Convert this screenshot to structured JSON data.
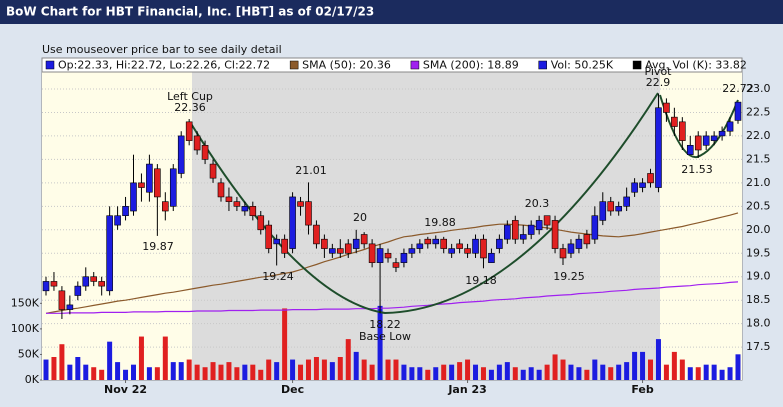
{
  "chart_data": {
    "type": "candlestick",
    "title": "BoW Chart for HBT Financial, Inc. [HBT] as of 02/17/23",
    "subtitle": "Use mouseover price bar to see daily detail",
    "legend": [
      {
        "name": "Op:22.33, Hi:22.72, Lo:22.26, Cl:22.72",
        "color": "#1c1ce0"
      },
      {
        "name": "SMA (50): 20.36",
        "color": "#8b5a2b"
      },
      {
        "name": "SMA (200): 18.89",
        "color": "#a020f0"
      },
      {
        "name": "Vol: 50.25K",
        "color": "#1c1ce0"
      },
      {
        "name": "Avg. Vol (K): 33.82",
        "color": "#000000"
      }
    ],
    "up_color": "#1c1ce0",
    "down_color": "#e02020",
    "categories": [
      null,
      null,
      null,
      null,
      null,
      null,
      null,
      null,
      null,
      null,
      "Nov 22",
      null,
      null,
      null,
      null,
      null,
      null,
      null,
      null,
      null,
      null,
      null,
      null,
      null,
      null,
      null,
      null,
      null,
      null,
      null,
      null,
      "Dec",
      null,
      null,
      null,
      null,
      null,
      null,
      null,
      null,
      null,
      null,
      null,
      null,
      null,
      null,
      null,
      null,
      null,
      null,
      null,
      null,
      null,
      "Jan 23",
      null,
      null,
      null,
      null,
      null,
      null,
      null,
      null,
      null,
      null,
      null,
      null,
      null,
      null,
      null,
      null,
      null,
      null,
      null,
      null,
      null,
      "Feb",
      null,
      null,
      null,
      null,
      null,
      null,
      null,
      null,
      null,
      null,
      null,
      null
    ],
    "open": [
      18.7,
      18.9,
      18.7,
      18.3,
      18.6,
      18.8,
      19.0,
      18.9,
      18.7,
      20.1,
      20.3,
      20.4,
      21.0,
      20.8,
      21.3,
      20.6,
      20.5,
      21.2,
      22.3,
      22.0,
      21.8,
      21.4,
      21.0,
      20.7,
      20.6,
      20.4,
      20.5,
      20.3,
      20.1,
      19.7,
      19.8,
      19.6,
      20.6,
      20.6,
      20.1,
      19.8,
      19.5,
      19.6,
      19.7,
      19.6,
      19.9,
      19.7,
      19.3,
      19.5,
      19.3,
      19.3,
      19.5,
      19.6,
      19.8,
      19.7,
      19.8,
      19.5,
      19.7,
      19.6,
      19.5,
      19.8,
      19.3,
      19.6,
      19.8,
      20.2,
      19.8,
      19.9,
      20.0,
      20.3,
      20.2,
      19.6,
      19.5,
      19.6,
      19.9,
      19.8,
      20.2,
      20.6,
      20.4,
      20.5,
      20.8,
      20.9,
      21.2,
      20.9,
      22.7,
      22.4,
      22.3,
      21.6,
      22.0,
      21.8,
      21.9,
      22.0,
      22.1,
      22.33
    ],
    "high": [
      19.0,
      19.1,
      18.8,
      18.6,
      18.9,
      19.2,
      19.1,
      19.0,
      20.5,
      20.5,
      20.7,
      21.6,
      21.2,
      21.6,
      21.4,
      20.8,
      21.4,
      22.1,
      22.36,
      22.1,
      21.9,
      21.5,
      21.1,
      20.9,
      20.7,
      20.6,
      20.6,
      20.4,
      20.2,
      19.9,
      19.9,
      20.8,
      20.7,
      21.01,
      20.2,
      19.9,
      19.7,
      19.8,
      19.8,
      20.0,
      19.95,
      19.8,
      19.7,
      19.6,
      19.4,
      19.6,
      19.7,
      19.8,
      19.85,
      19.88,
      19.85,
      19.7,
      19.8,
      19.7,
      19.9,
      19.9,
      19.6,
      19.9,
      20.2,
      20.3,
      20.1,
      20.2,
      20.3,
      20.25,
      20.3,
      19.7,
      19.8,
      19.9,
      20.0,
      20.5,
      20.8,
      20.7,
      20.6,
      20.9,
      21.1,
      21.1,
      21.3,
      22.9,
      22.8,
      22.6,
      22.4,
      22.0,
      22.1,
      22.1,
      22.1,
      22.2,
      22.4,
      22.72
    ],
    "low": [
      18.6,
      18.7,
      18.1,
      18.2,
      18.5,
      18.7,
      18.8,
      18.6,
      18.6,
      20.0,
      20.2,
      20.3,
      20.6,
      20.6,
      19.87,
      20.2,
      20.4,
      21.1,
      21.8,
      21.6,
      21.4,
      21.0,
      20.6,
      20.4,
      20.4,
      20.3,
      20.2,
      19.9,
      19.5,
      19.24,
      19.4,
      19.5,
      20.3,
      19.9,
      19.6,
      19.4,
      19.4,
      19.4,
      19.4,
      19.5,
      19.6,
      19.2,
      18.22,
      19.3,
      19.1,
      19.2,
      19.4,
      19.5,
      19.6,
      19.6,
      19.5,
      19.4,
      19.5,
      19.4,
      19.4,
      19.18,
      19.3,
      19.5,
      19.7,
      19.7,
      19.7,
      19.8,
      19.9,
      20.0,
      19.5,
      19.25,
      19.4,
      19.5,
      19.6,
      19.7,
      20.1,
      20.3,
      20.3,
      20.4,
      20.7,
      20.8,
      20.9,
      20.8,
      22.3,
      22.0,
      21.7,
      21.6,
      21.53,
      21.7,
      21.8,
      21.9,
      22.0,
      22.26
    ],
    "close": [
      18.9,
      18.8,
      18.3,
      18.4,
      18.8,
      19.0,
      18.9,
      18.8,
      20.3,
      20.3,
      20.5,
      21.0,
      20.9,
      21.4,
      20.7,
      20.4,
      21.3,
      22.0,
      21.9,
      21.7,
      21.5,
      21.1,
      20.7,
      20.6,
      20.5,
      20.5,
      20.3,
      20.0,
      19.6,
      19.8,
      19.5,
      20.7,
      20.5,
      20.1,
      19.7,
      19.6,
      19.6,
      19.5,
      19.5,
      19.8,
      19.7,
      19.3,
      19.6,
      19.4,
      19.2,
      19.5,
      19.6,
      19.7,
      19.7,
      19.8,
      19.6,
      19.6,
      19.6,
      19.5,
      19.8,
      19.4,
      19.5,
      19.8,
      20.1,
      19.8,
      19.9,
      20.1,
      20.2,
      20.1,
      19.6,
      19.4,
      19.7,
      19.8,
      19.7,
      20.3,
      20.6,
      20.4,
      20.5,
      20.7,
      21.0,
      21.0,
      21.0,
      22.6,
      22.5,
      22.2,
      21.9,
      21.8,
      21.7,
      22.0,
      22.0,
      22.1,
      22.3,
      22.72
    ],
    "sma50": [
      18.22,
      18.25,
      18.28,
      18.31,
      18.33,
      18.36,
      18.39,
      18.42,
      18.45,
      18.48,
      18.5,
      18.53,
      18.56,
      18.59,
      18.62,
      18.65,
      18.67,
      18.7,
      18.73,
      18.76,
      18.79,
      18.82,
      18.84,
      18.87,
      18.9,
      18.93,
      18.96,
      18.99,
      19.01,
      19.04,
      19.07,
      19.1,
      19.15,
      19.21,
      19.26,
      19.32,
      19.37,
      19.42,
      19.48,
      19.53,
      19.58,
      19.64,
      19.69,
      19.74,
      19.8,
      19.85,
      19.87,
      19.9,
      19.92,
      19.94,
      19.96,
      19.99,
      20.01,
      20.03,
      20.05,
      20.08,
      20.1,
      20.12,
      20.12,
      20.11,
      20.1,
      20.08,
      20.06,
      20.04,
      20.01,
      19.98,
      19.95,
      19.93,
      19.91,
      19.89,
      19.87,
      19.86,
      19.85,
      19.87,
      19.89,
      19.92,
      19.95,
      19.98,
      20.01,
      20.04,
      20.07,
      20.11,
      20.15,
      20.19,
      20.23,
      20.27,
      20.31,
      20.36
    ],
    "sma200": [
      18.22,
      18.22,
      18.22,
      18.23,
      18.23,
      18.23,
      18.23,
      18.24,
      18.24,
      18.24,
      18.24,
      18.25,
      18.25,
      18.25,
      18.25,
      18.26,
      18.26,
      18.26,
      18.26,
      18.27,
      18.27,
      18.27,
      18.27,
      18.28,
      18.28,
      18.28,
      18.28,
      18.29,
      18.29,
      18.29,
      18.29,
      18.3,
      18.3,
      18.3,
      18.3,
      18.31,
      18.31,
      18.31,
      18.31,
      18.32,
      18.32,
      18.32,
      18.33,
      18.33,
      18.34,
      18.35,
      18.37,
      18.38,
      18.39,
      18.41,
      18.42,
      18.43,
      18.45,
      18.46,
      18.47,
      18.48,
      18.5,
      18.51,
      18.52,
      18.53,
      18.55,
      18.56,
      18.57,
      18.59,
      18.6,
      18.61,
      18.62,
      18.64,
      18.65,
      18.66,
      18.67,
      18.69,
      18.7,
      18.71,
      18.73,
      18.74,
      18.75,
      18.76,
      18.78,
      18.79,
      18.8,
      18.81,
      18.83,
      18.84,
      18.85,
      18.86,
      18.88,
      18.89
    ],
    "volume": [
      40,
      45,
      70,
      30,
      45,
      30,
      25,
      20,
      75,
      35,
      20,
      30,
      85,
      25,
      25,
      85,
      35,
      35,
      40,
      30,
      25,
      35,
      30,
      35,
      25,
      30,
      30,
      20,
      40,
      35,
      140,
      40,
      30,
      40,
      45,
      40,
      35,
      45,
      80,
      55,
      40,
      30,
      145,
      40,
      40,
      30,
      25,
      25,
      20,
      25,
      30,
      30,
      35,
      40,
      30,
      25,
      20,
      30,
      35,
      25,
      20,
      25,
      20,
      30,
      50,
      40,
      30,
      25,
      20,
      40,
      30,
      25,
      30,
      35,
      55,
      55,
      40,
      80,
      30,
      55,
      40,
      25,
      25,
      30,
      30,
      20,
      25,
      50.25
    ],
    "ylim": [
      16.8,
      23.66
    ],
    "yticks": [
      17.5,
      {
        "value": 18,
        "label": "18.0"
      },
      18.5,
      {
        "value": 19,
        "label": "19.0"
      },
      19.5,
      {
        "value": 20,
        "label": "20.0"
      },
      20.5,
      {
        "value": 21,
        "label": "21.0"
      },
      21.5,
      {
        "value": 22,
        "label": "22.0"
      },
      22.5,
      {
        "value": 23,
        "label": "23.0"
      }
    ],
    "vlim": [
      0,
      630
    ],
    "vticks": [
      {
        "value": 0,
        "label": "0K"
      },
      {
        "value": 50,
        "label": "50K"
      },
      {
        "value": 100,
        "label": "100K"
      },
      {
        "value": 150,
        "label": "150K"
      }
    ],
    "annotations": [
      "Left Cup",
      "22.36",
      "19.87",
      "19.24",
      "21.01",
      "20",
      "18.22",
      "Base Low",
      "19.88",
      "19.18",
      "20.3",
      "19.25",
      "Pivot",
      "22.9",
      "21.53",
      "22.72"
    ],
    "grid": true
  }
}
